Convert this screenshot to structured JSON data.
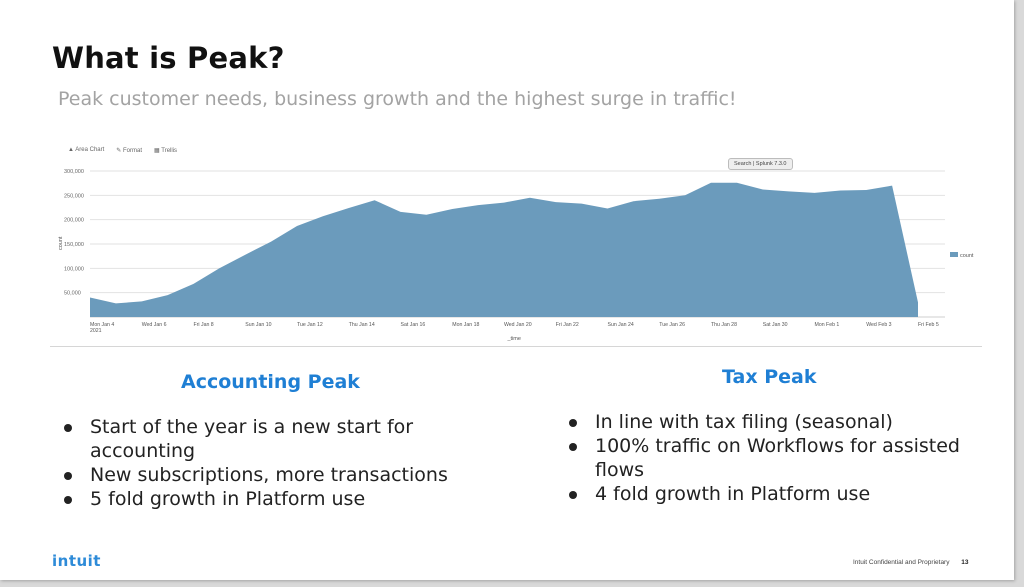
{
  "slide": {
    "title": "What is Peak?",
    "subtitle": "Peak customer needs, business growth and the highest surge in traffic!"
  },
  "chart_toolbar": {
    "area_chart": "Area Chart",
    "format": "Format",
    "trellis": "Trellis"
  },
  "chart_tooltip": "Search | Splunk 7.3.0",
  "chart_data": {
    "type": "area",
    "xlabel": "_time",
    "ylabel": "count",
    "ylim": [
      0,
      300000
    ],
    "yticks": [
      50000,
      100000,
      150000,
      200000,
      250000,
      300000
    ],
    "ytick_labels": [
      "50,000",
      "100,000",
      "150,000",
      "200,000",
      "250,000",
      "300,000"
    ],
    "xtick_labels": [
      "Mon Jan 4\n2021",
      "Wed Jan 6",
      "Fri Jan 8",
      "Sun Jan 10",
      "Tue Jan 12",
      "Thu Jan 14",
      "Sat Jan 16",
      "Mon Jan 18",
      "Wed Jan 20",
      "Fri Jan 22",
      "Sun Jan 24",
      "Tue Jan 26",
      "Thu Jan 28",
      "Sat Jan 30",
      "Mon Feb 1",
      "Wed Feb 3",
      "Fri Feb 5"
    ],
    "x": [
      "Mon Jan 4",
      "Tue Jan 5",
      "Wed Jan 6",
      "Thu Jan 7",
      "Fri Jan 8",
      "Sat Jan 9",
      "Sun Jan 10",
      "Mon Jan 11",
      "Tue Jan 12",
      "Wed Jan 13",
      "Thu Jan 14",
      "Fri Jan 15",
      "Sat Jan 16",
      "Sun Jan 17",
      "Mon Jan 18",
      "Tue Jan 19",
      "Wed Jan 20",
      "Thu Jan 21",
      "Fri Jan 22",
      "Sat Jan 23",
      "Sun Jan 24",
      "Mon Jan 25",
      "Tue Jan 26",
      "Wed Jan 27",
      "Thu Jan 28",
      "Fri Jan 29",
      "Sat Jan 30",
      "Sun Jan 31",
      "Mon Feb 1",
      "Tue Feb 2",
      "Wed Feb 3",
      "Thu Feb 4",
      "Fri Feb 5"
    ],
    "series": [
      {
        "name": "count",
        "color": "#6b9bbc",
        "values": [
          40000,
          28000,
          32000,
          45000,
          68000,
          100000,
          128000,
          155000,
          187000,
          207000,
          224000,
          240000,
          216000,
          210000,
          222000,
          230000,
          235000,
          245000,
          236000,
          233000,
          223000,
          238000,
          243000,
          250000,
          276000,
          276000,
          262000,
          258000,
          255000,
          260000,
          261000,
          270000,
          30000
        ]
      }
    ],
    "legend": {
      "position": "right",
      "label": "count"
    },
    "grid": true
  },
  "accounting": {
    "heading": "Accounting Peak",
    "bullets": [
      "Start of the year is a new start for accounting",
      "New subscriptions, more transactions",
      "5 fold growth in Platform use"
    ]
  },
  "tax": {
    "heading": "Tax Peak",
    "bullets": [
      "In line with tax filing (seasonal)",
      "100% traffic on Workflows for assisted flows",
      "4 fold growth in Platform use"
    ]
  },
  "footer": {
    "logo": "intuit",
    "confidential": "Intuit Confidential and Proprietary",
    "page_number": "13"
  },
  "colors": {
    "title": "#111111",
    "subtitle": "#a3a3a3",
    "heading_blue": "#1f7fd4",
    "logo_blue": "#2e8bd8",
    "area_fill": "#6b9bbc"
  }
}
